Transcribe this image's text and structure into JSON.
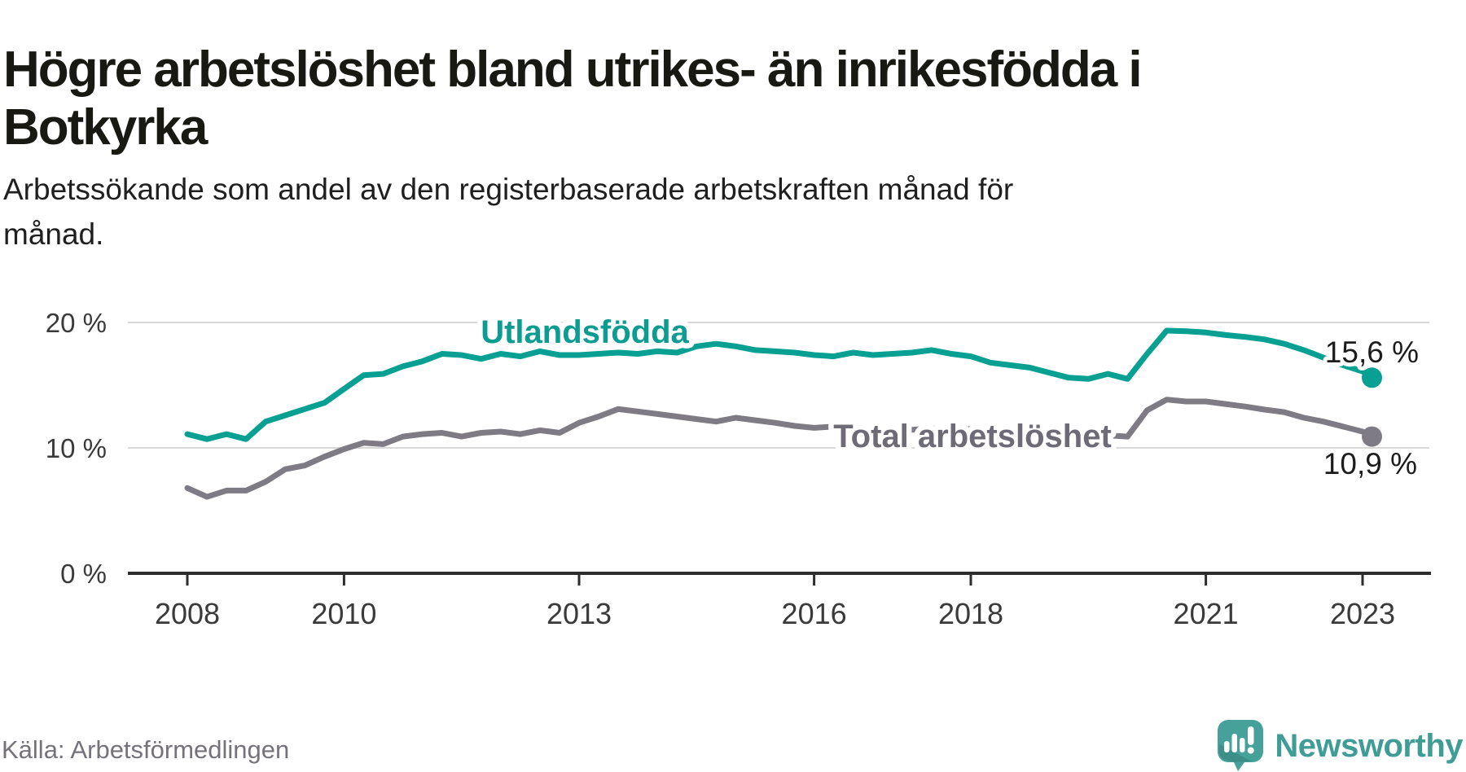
{
  "header": {
    "title_line1": "Högre arbetslöshet bland utrikes- än inrikesfödda i",
    "title_line2": "Botkyrka",
    "subtitle_line1": "Arbetssökande som andel av den registerbaserade arbetskraften månad för",
    "subtitle_line2": "månad."
  },
  "footer": {
    "source": "Källa: Arbetsförmedlingen",
    "brand": "Newsworthy"
  },
  "colors": {
    "background": "#ffffff",
    "title_text": "#191914",
    "axis_text": "#3a3a3a",
    "gridline": "#d8d8d8",
    "axis_line": "#2d2d2d",
    "utlandsfodda_teal": "#08a093",
    "total_gray": "#7e7b85",
    "source_text": "#76727b",
    "brand_teal": "#45a19a"
  },
  "chart_data": {
    "type": "line",
    "title": "Högre arbetslöshet bland utrikes- än inrikesfödda i Botkyrka",
    "subtitle": "Arbetssökande som andel av den registerbaserade arbetskraften månad för månad.",
    "xlabel": "",
    "ylabel": "",
    "ylim": [
      0,
      21.5
    ],
    "x_start": 2008,
    "x_step": 0.25,
    "x_end": 2023.12,
    "grid": "horizontal",
    "legend_position": "inline-labels",
    "gridlines": [
      20,
      10
    ],
    "y_axis": {
      "ticks": [
        {
          "value": 20,
          "label": "20 %"
        },
        {
          "value": 10,
          "label": "10 %"
        },
        {
          "value": 0,
          "label": "0 %"
        }
      ]
    },
    "x_axis": {
      "ticks": [
        {
          "year": 2008,
          "label": "2008"
        },
        {
          "year": 2010,
          "label": "2010"
        },
        {
          "year": 2013,
          "label": "2013"
        },
        {
          "year": 2016,
          "label": "2016"
        },
        {
          "year": 2018,
          "label": "2018"
        },
        {
          "year": 2021,
          "label": "2021"
        },
        {
          "year": 2023,
          "label": "2023"
        }
      ]
    },
    "series": [
      {
        "name": "Utlandsfödda",
        "color": "#08a093",
        "label_color": "#0c9c91",
        "end_label": "15,6 %",
        "end_value": 15.6,
        "values": [
          11.1,
          10.7,
          11.1,
          10.7,
          12.1,
          12.6,
          13.1,
          13.6,
          14.7,
          15.8,
          15.9,
          16.5,
          16.9,
          17.5,
          17.4,
          17.1,
          17.5,
          17.3,
          17.7,
          17.4,
          17.4,
          17.5,
          17.6,
          17.5,
          17.7,
          17.6,
          18.1,
          18.3,
          18.1,
          17.8,
          17.7,
          17.6,
          17.4,
          17.3,
          17.6,
          17.4,
          17.5,
          17.6,
          17.8,
          17.5,
          17.3,
          16.8,
          16.6,
          16.4,
          16.0,
          15.6,
          15.5,
          15.9,
          15.5,
          17.5,
          19.35,
          19.3,
          19.2,
          19.0,
          18.85,
          18.65,
          18.3,
          17.8,
          17.2,
          16.6,
          16.1,
          15.6
        ]
      },
      {
        "name": "Total arbetslöshet",
        "color": "#7e7b85",
        "label_color": "#6e6b76",
        "end_label": "10,9 %",
        "end_value": 10.9,
        "values": [
          6.8,
          6.1,
          6.6,
          6.6,
          7.3,
          8.3,
          8.6,
          9.3,
          9.9,
          10.4,
          10.3,
          10.9,
          11.1,
          11.2,
          10.9,
          11.2,
          11.3,
          11.1,
          11.4,
          11.2,
          12.0,
          12.5,
          13.1,
          12.9,
          12.7,
          12.5,
          12.3,
          12.1,
          12.4,
          12.2,
          12.0,
          11.75,
          11.6,
          11.7,
          11.6,
          11.45,
          11.4,
          11.45,
          11.55,
          11.4,
          11.5,
          11.4,
          11.3,
          11.35,
          11.2,
          11.0,
          10.9,
          11.0,
          10.9,
          13.0,
          13.85,
          13.7,
          13.7,
          13.5,
          13.3,
          13.05,
          12.85,
          12.4,
          12.1,
          11.7,
          11.3,
          10.9
        ]
      }
    ]
  }
}
